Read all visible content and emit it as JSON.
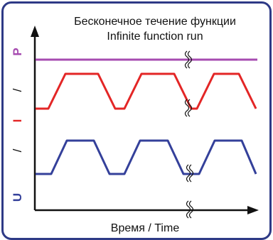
{
  "title": {
    "line1": "Бесконечное течение функции",
    "line2": "Infinite function run"
  },
  "x_axis_label": "Время / Time",
  "y_axis": {
    "label_u": "U",
    "label_i": "I",
    "label_p": "P",
    "separator": "/"
  },
  "colors": {
    "frame": "#2e3a86",
    "P": "#a64bb0",
    "I": "#e32626",
    "U": "#34409a",
    "axis": "#111111"
  },
  "icons": {
    "break_mark": "break-mark-icon"
  }
}
